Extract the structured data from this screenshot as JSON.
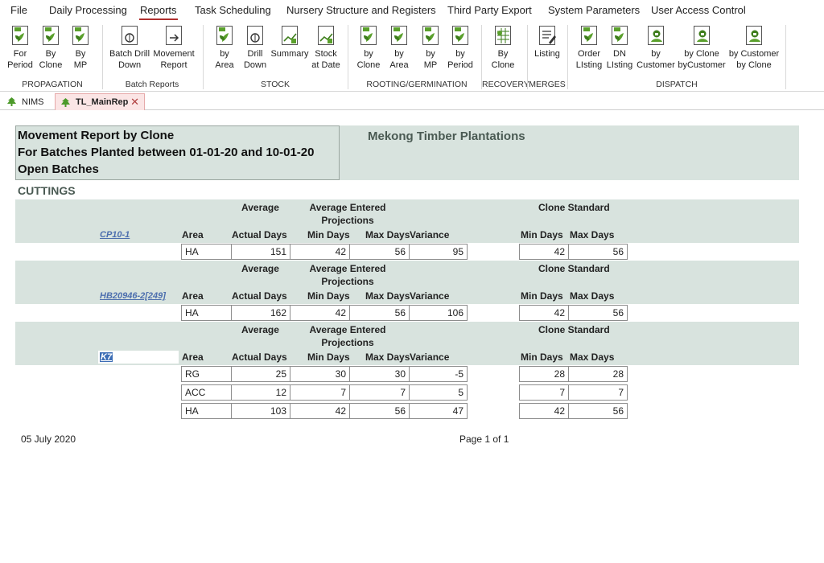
{
  "menu": [
    "File",
    "Daily Processing",
    "Reports",
    "Task Scheduling",
    "Nursery Structure and Registers",
    "Third Party Export",
    "System Parameters",
    "User Access Control"
  ],
  "ribbon": {
    "buttons": [
      "For\nPeriod",
      "By\nClone",
      "By\nMP",
      "Batch Drill\nDown",
      "Movement\nReport",
      "by\nArea",
      "Drill\nDown",
      "Summary",
      "Stock\nat Date",
      "by\nClone",
      "by\nArea",
      "by\nMP",
      "by\nPeriod",
      "By\nClone",
      "Listing",
      "Order\nLIsting",
      "DN\nLIsting",
      "by\nCustomer",
      "by Clone\nbyCustomer",
      "by Customer\nby Clone"
    ],
    "groups": [
      "PROPAGATION",
      "Batch Reports",
      "STOCK",
      "ROOTING/GERMINATION",
      "RECOVERY",
      "MERGES",
      "DISPATCH"
    ]
  },
  "tabs": [
    "NIMS",
    "TL_MainRep"
  ],
  "report": {
    "title_lines": [
      "Movement Report by Clone",
      "For Batches  Planted between 01-01-20 and 10-01-20",
      "Open Batches"
    ],
    "company": "Mekong Timber Plantations",
    "section": "CUTTINGS",
    "headers": {
      "average": "Average",
      "avg_entered": "Average Entered",
      "projections": "Projections",
      "clone_standard": "Clone Standard",
      "area": "Area",
      "actual_days": "Actual Days",
      "min_days": "Min Days",
      "max_days": "Max Days",
      "variance": "Variance",
      "std_min": "Min Days",
      "std_max": "Max Days"
    },
    "clones": [
      {
        "name": "CP10-1",
        "rows": [
          {
            "area": "HA",
            "actual": "151",
            "min": "42",
            "max": "56",
            "variance": "95",
            "std_min": "42",
            "std_max": "56"
          }
        ]
      },
      {
        "name": "HB20946-2[249]",
        "rows": [
          {
            "area": "HA",
            "actual": "162",
            "min": "42",
            "max": "56",
            "variance": "106",
            "std_min": "42",
            "std_max": "56"
          }
        ]
      },
      {
        "name": "K7",
        "rows": [
          {
            "area": "RG",
            "actual": "25",
            "min": "30",
            "max": "30",
            "variance": "-5",
            "std_min": "28",
            "std_max": "28"
          },
          {
            "area": "ACC",
            "actual": "12",
            "min": "7",
            "max": "7",
            "variance": "5",
            "std_min": "7",
            "std_max": "7"
          },
          {
            "area": "HA",
            "actual": "103",
            "min": "42",
            "max": "56",
            "variance": "47",
            "std_min": "42",
            "std_max": "56"
          }
        ]
      }
    ],
    "footer_date": "05 July 2020",
    "footer_page": "Page 1 of 1"
  },
  "colors": {
    "band": "#d8e3de",
    "accent": "#b0302f",
    "icon_green": "#5aa02c",
    "link": "#4d6fae"
  }
}
